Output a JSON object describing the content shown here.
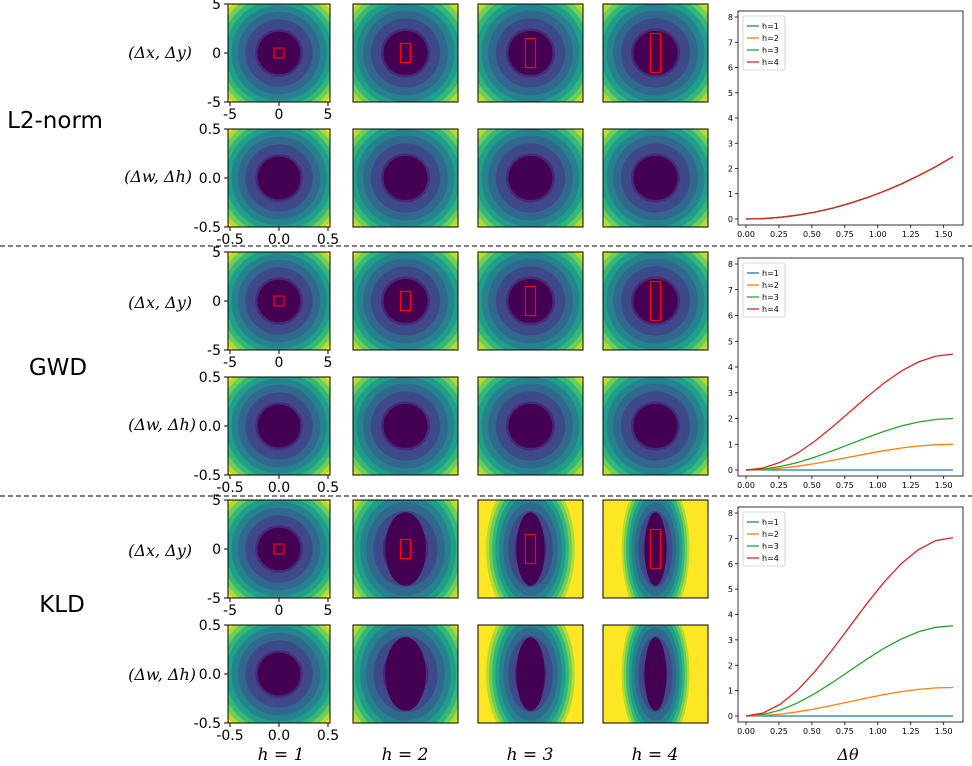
{
  "rows": [
    {
      "label": "L2-norm",
      "pos_label": "(Δx, Δy)",
      "size_label": "(Δw, Δh)",
      "stretch": [
        1,
        1,
        1,
        1
      ]
    },
    {
      "label": "GWD",
      "pos_label": "(Δx, Δy)",
      "size_label": "(Δw, Δh)",
      "stretch": [
        1,
        1,
        1,
        1
      ]
    },
    {
      "label": "KLD",
      "pos_label": "(Δx, Δy)",
      "size_label": "(Δw, Δh)",
      "stretch": [
        1,
        1.8,
        2.6,
        3.4
      ]
    }
  ],
  "pos_axis": {
    "ticks": [
      "-5",
      "0",
      "5"
    ]
  },
  "size_axis": {
    "ticks": [
      "-0.5",
      "0.0",
      "0.5"
    ]
  },
  "column_labels": [
    "h = 1",
    "h = 2",
    "h = 3",
    "h = 4"
  ],
  "colors": {
    "viridis": [
      "#440154",
      "#482878",
      "#3e4989",
      "#31688e",
      "#26828e",
      "#1f9e89",
      "#35b779",
      "#6ece58",
      "#b5de2b",
      "#fde725"
    ],
    "box": "#ff0000",
    "series": [
      "#1f77b4",
      "#ff7f0e",
      "#2ca02c",
      "#d62728"
    ]
  },
  "chart_data": [
    {
      "type": "line",
      "title": "L2-norm",
      "xlabel": "Δθ",
      "ylabel": "",
      "xlim": [
        0,
        1.5708
      ],
      "ylim": [
        0,
        8
      ],
      "x_ticks": [
        0.0,
        0.25,
        0.5,
        0.75,
        1.0,
        1.25,
        1.5
      ],
      "x_tick_labels": [
        "0.00",
        "0.25",
        "0.50",
        "0.75",
        "1.00",
        "1.25",
        "1.50"
      ],
      "y_ticks": [
        0,
        1,
        2,
        3,
        4,
        5,
        6,
        7,
        8
      ],
      "legend": "top-left",
      "x": [
        0.0,
        0.1309,
        0.2618,
        0.3927,
        0.5236,
        0.6545,
        0.7854,
        0.9163,
        1.0472,
        1.1781,
        1.309,
        1.4399,
        1.5708
      ],
      "series": [
        {
          "name": "h=1",
          "values": [
            0,
            0.017,
            0.069,
            0.154,
            0.274,
            0.428,
            0.617,
            0.839,
            1.097,
            1.388,
            1.713,
            2.073,
            2.467
          ]
        },
        {
          "name": "h=2",
          "values": [
            0,
            0.017,
            0.069,
            0.154,
            0.274,
            0.428,
            0.617,
            0.839,
            1.097,
            1.388,
            1.713,
            2.073,
            2.467
          ]
        },
        {
          "name": "h=3",
          "values": [
            0,
            0.017,
            0.069,
            0.154,
            0.274,
            0.428,
            0.617,
            0.839,
            1.097,
            1.388,
            1.713,
            2.073,
            2.467
          ]
        },
        {
          "name": "h=4",
          "values": [
            0,
            0.017,
            0.069,
            0.154,
            0.274,
            0.428,
            0.617,
            0.839,
            1.097,
            1.388,
            1.713,
            2.073,
            2.467
          ]
        }
      ]
    },
    {
      "type": "line",
      "title": "GWD",
      "xlabel": "Δθ",
      "ylabel": "",
      "xlim": [
        0,
        1.5708
      ],
      "ylim": [
        0,
        8
      ],
      "x_ticks": [
        0.0,
        0.25,
        0.5,
        0.75,
        1.0,
        1.25,
        1.5
      ],
      "x_tick_labels": [
        "0.00",
        "0.25",
        "0.50",
        "0.75",
        "1.00",
        "1.25",
        "1.50"
      ],
      "y_ticks": [
        0,
        1,
        2,
        3,
        4,
        5,
        6,
        7,
        8
      ],
      "legend": "top-left",
      "x": [
        0.0,
        0.1309,
        0.2618,
        0.3927,
        0.5236,
        0.6545,
        0.7854,
        0.9163,
        1.0472,
        1.1781,
        1.309,
        1.4399,
        1.5708
      ],
      "series": [
        {
          "name": "h=1",
          "values": [
            0,
            0,
            0,
            0,
            0,
            0,
            0,
            0,
            0,
            0,
            0,
            0,
            0
          ]
        },
        {
          "name": "h=2",
          "values": [
            0,
            0.017,
            0.067,
            0.146,
            0.25,
            0.371,
            0.5,
            0.629,
            0.75,
            0.854,
            0.933,
            0.983,
            1.0
          ]
        },
        {
          "name": "h=3",
          "values": [
            0,
            0.034,
            0.134,
            0.293,
            0.5,
            0.741,
            1.0,
            1.259,
            1.5,
            1.707,
            1.866,
            1.966,
            2.0
          ]
        },
        {
          "name": "h=4",
          "values": [
            0,
            0.077,
            0.301,
            0.659,
            1.125,
            1.668,
            2.25,
            2.832,
            3.375,
            3.841,
            4.199,
            4.423,
            4.5
          ]
        }
      ]
    },
    {
      "type": "line",
      "title": "KLD",
      "xlabel": "Δθ",
      "ylabel": "",
      "xlim": [
        0,
        1.5708
      ],
      "ylim": [
        0,
        8
      ],
      "x_ticks": [
        0.0,
        0.25,
        0.5,
        0.75,
        1.0,
        1.25,
        1.5
      ],
      "x_tick_labels": [
        "0.00",
        "0.25",
        "0.50",
        "0.75",
        "1.00",
        "1.25",
        "1.50"
      ],
      "y_ticks": [
        0,
        1,
        2,
        3,
        4,
        5,
        6,
        7,
        8
      ],
      "legend": "top-left",
      "x": [
        0.0,
        0.1309,
        0.2618,
        0.3927,
        0.5236,
        0.6545,
        0.7854,
        0.9163,
        1.0472,
        1.1781,
        1.309,
        1.4399,
        1.5708
      ],
      "series": [
        {
          "name": "h=1",
          "values": [
            0,
            0,
            0,
            0,
            0,
            0,
            0,
            0,
            0,
            0,
            0,
            0,
            0
          ]
        },
        {
          "name": "h=2",
          "values": [
            0,
            0.019,
            0.075,
            0.164,
            0.281,
            0.417,
            0.563,
            0.708,
            0.844,
            0.961,
            1.05,
            1.106,
            1.125
          ]
        },
        {
          "name": "h=3",
          "values": [
            0,
            0.06,
            0.237,
            0.52,
            0.889,
            1.318,
            1.778,
            2.238,
            2.667,
            3.035,
            3.318,
            3.495,
            3.556
          ]
        },
        {
          "name": "h=4",
          "values": [
            0,
            0.119,
            0.469,
            1.027,
            1.758,
            2.606,
            3.516,
            4.426,
            5.273,
            6.004,
            6.563,
            6.912,
            7.031
          ]
        }
      ]
    }
  ]
}
